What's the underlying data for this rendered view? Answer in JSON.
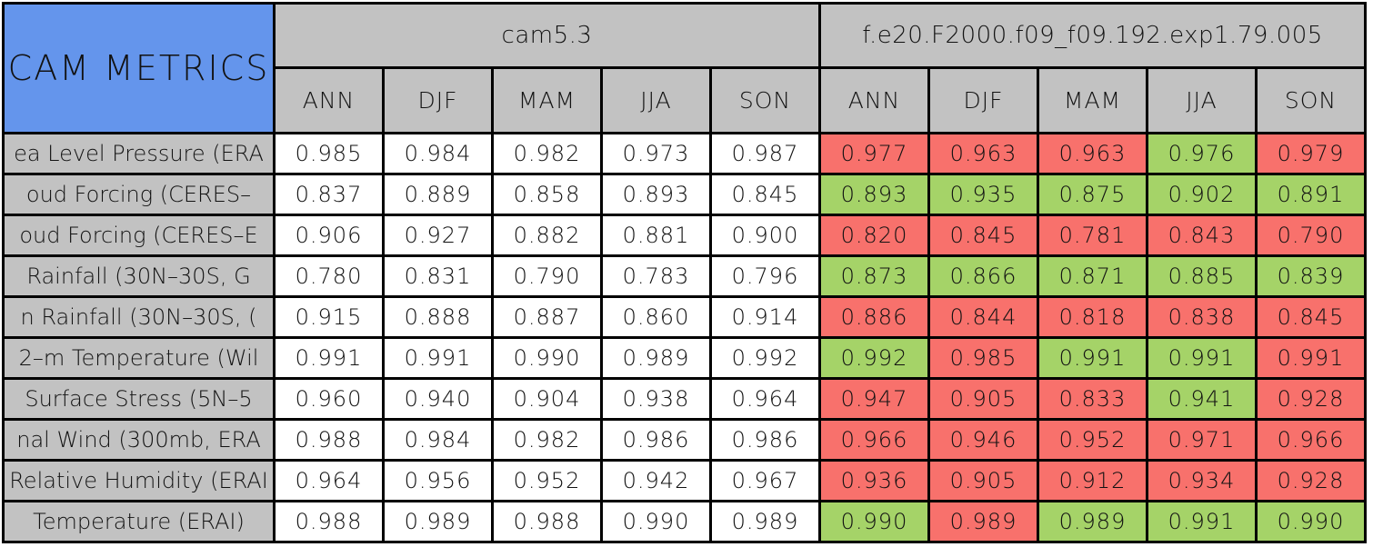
{
  "colors": {
    "title_bg": "#6495EC",
    "header_bg": "#C2C2C2",
    "exp_better_bg": "#A5D368",
    "exp_worse_bg": "#F8716C",
    "grid": "#000000",
    "cam53_cell_bg": "#FFFFFF"
  },
  "chart_data": {
    "type": "table",
    "title": "CAM METRICS",
    "models": [
      "cam5.3",
      "f.e20.F2000.f09_f09.192.exp1.79.005"
    ],
    "seasons": [
      "ANN",
      "DJF",
      "MAM",
      "JJA",
      "SON"
    ],
    "highlight_legend": "green = experiment cell better than cam5.3, red = worse",
    "rows": [
      {
        "metric": "ea Level Pressure (ERA",
        "cam53": [
          "0.985",
          "0.984",
          "0.982",
          "0.973",
          "0.987"
        ],
        "exp": [
          "0.977",
          "0.963",
          "0.963",
          "0.976",
          "0.979"
        ],
        "exp_status": [
          "red",
          "red",
          "red",
          "green",
          "red"
        ]
      },
      {
        "metric": "oud Forcing (CERES–",
        "cam53": [
          "0.837",
          "0.889",
          "0.858",
          "0.893",
          "0.845"
        ],
        "exp": [
          "0.893",
          "0.935",
          "0.875",
          "0.902",
          "0.891"
        ],
        "exp_status": [
          "green",
          "green",
          "green",
          "green",
          "green"
        ]
      },
      {
        "metric": "oud Forcing (CERES–E",
        "cam53": [
          "0.906",
          "0.927",
          "0.882",
          "0.881",
          "0.900"
        ],
        "exp": [
          "0.820",
          "0.845",
          "0.781",
          "0.843",
          "0.790"
        ],
        "exp_status": [
          "red",
          "red",
          "red",
          "red",
          "red"
        ]
      },
      {
        "metric": "Rainfall (30N–30S, G",
        "cam53": [
          "0.780",
          "0.831",
          "0.790",
          "0.783",
          "0.796"
        ],
        "exp": [
          "0.873",
          "0.866",
          "0.871",
          "0.885",
          "0.839"
        ],
        "exp_status": [
          "green",
          "green",
          "green",
          "green",
          "green"
        ]
      },
      {
        "metric": "n Rainfall (30N–30S, (",
        "cam53": [
          "0.915",
          "0.888",
          "0.887",
          "0.860",
          "0.914"
        ],
        "exp": [
          "0.886",
          "0.844",
          "0.818",
          "0.838",
          "0.845"
        ],
        "exp_status": [
          "red",
          "red",
          "red",
          "red",
          "red"
        ]
      },
      {
        "metric": "2–m Temperature (Wil",
        "cam53": [
          "0.991",
          "0.991",
          "0.990",
          "0.989",
          "0.992"
        ],
        "exp": [
          "0.992",
          "0.985",
          "0.991",
          "0.991",
          "0.991"
        ],
        "exp_status": [
          "green",
          "red",
          "green",
          "green",
          "red"
        ]
      },
      {
        "metric": "Surface Stress (5N–5",
        "cam53": [
          "0.960",
          "0.940",
          "0.904",
          "0.938",
          "0.964"
        ],
        "exp": [
          "0.947",
          "0.905",
          "0.833",
          "0.941",
          "0.928"
        ],
        "exp_status": [
          "red",
          "red",
          "red",
          "green",
          "red"
        ]
      },
      {
        "metric": "nal Wind (300mb, ERA",
        "cam53": [
          "0.988",
          "0.984",
          "0.982",
          "0.986",
          "0.986"
        ],
        "exp": [
          "0.966",
          "0.946",
          "0.952",
          "0.971",
          "0.966"
        ],
        "exp_status": [
          "red",
          "red",
          "red",
          "red",
          "red"
        ]
      },
      {
        "metric": "Relative Humidity (ERAI",
        "cam53": [
          "0.964",
          "0.956",
          "0.952",
          "0.942",
          "0.967"
        ],
        "exp": [
          "0.936",
          "0.905",
          "0.912",
          "0.934",
          "0.928"
        ],
        "exp_status": [
          "red",
          "red",
          "red",
          "red",
          "red"
        ]
      },
      {
        "metric": "Temperature (ERAI)",
        "cam53": [
          "0.988",
          "0.989",
          "0.988",
          "0.990",
          "0.989"
        ],
        "exp": [
          "0.990",
          "0.989",
          "0.989",
          "0.991",
          "0.990"
        ],
        "exp_status": [
          "green",
          "red",
          "green",
          "green",
          "green"
        ]
      }
    ]
  }
}
